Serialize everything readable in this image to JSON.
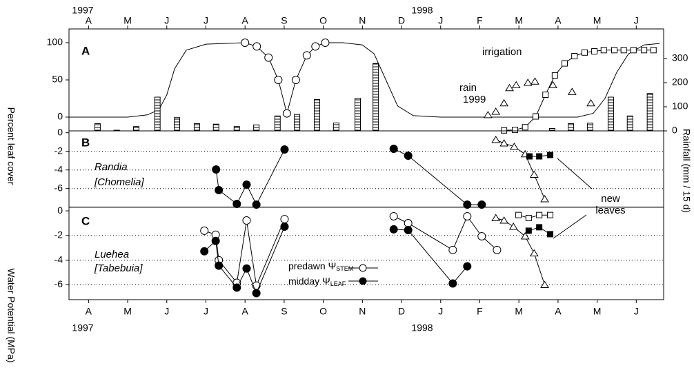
{
  "chart_data": [
    {
      "type": "line",
      "label": "A",
      "years": [
        "1997",
        "1998"
      ],
      "xlim": [
        -0.5,
        14.7
      ],
      "xticks": [
        {
          "value": 0,
          "label": "A"
        },
        {
          "value": 1,
          "label": "M"
        },
        {
          "value": 2,
          "label": "J"
        },
        {
          "value": 3,
          "label": "J"
        },
        {
          "value": 4,
          "label": "A"
        },
        {
          "value": 5,
          "label": "S"
        },
        {
          "value": 6,
          "label": "O"
        },
        {
          "value": 7,
          "label": "N"
        },
        {
          "value": 8,
          "label": "D"
        },
        {
          "value": 9,
          "label": "J"
        },
        {
          "value": 10,
          "label": "F"
        },
        {
          "value": 11,
          "label": "M"
        },
        {
          "value": 12,
          "label": "A"
        },
        {
          "value": 13,
          "label": "M"
        },
        {
          "value": 14,
          "label": "J"
        }
      ],
      "ylim": [
        -18.5,
        118.5
      ],
      "yticks": [
        0,
        50,
        100
      ],
      "y2lim": [
        0,
        423
      ],
      "y2ticks": [
        0,
        100,
        200,
        300
      ],
      "ylabel": "Percent leaf cover",
      "y2label": "Rainfall (mm / 15 d)",
      "annotations": [
        "irrigation",
        "rain",
        "1999"
      ],
      "series": [
        {
          "marker": "none",
          "line": true,
          "x": [
            -0.5,
            1.0,
            1.5,
            1.8,
            2.0,
            2.2,
            2.5,
            3.0,
            4.0,
            4.3,
            4.6,
            4.85,
            5.07,
            5.3,
            5.58,
            5.8,
            6.05,
            6.5,
            7.0,
            7.3,
            7.6,
            7.9,
            8.3,
            9.0,
            12.5,
            12.9,
            13.2,
            13.5,
            13.8,
            14.2,
            14.6
          ],
          "values": [
            0,
            0,
            3,
            10,
            30,
            65,
            90,
            98,
            100,
            95,
            80,
            50,
            5,
            50,
            83,
            95,
            100,
            100,
            97,
            85,
            50,
            15,
            2,
            0,
            0,
            5,
            25,
            60,
            85,
            97,
            99
          ]
        },
        {
          "marker": "circle",
          "fill": "white",
          "line": false,
          "x": [
            4.0,
            4.3,
            4.6,
            4.85,
            5.07,
            5.3,
            5.58,
            5.8,
            6.05
          ],
          "values": [
            100,
            95,
            80,
            50,
            5,
            50,
            83,
            95,
            100
          ]
        },
        {
          "marker": "bar",
          "axis": "y2",
          "x": [
            0.23,
            0.72,
            1.22,
            1.76,
            2.26,
            2.77,
            3.26,
            3.79,
            4.29,
            4.83,
            5.33,
            5.84,
            6.33,
            6.88,
            7.34,
            11.85,
            12.33,
            12.82,
            13.35,
            13.84,
            14.35
          ],
          "values": [
            30,
            3,
            18,
            140,
            55,
            30,
            28,
            18,
            25,
            62,
            68,
            130,
            33,
            135,
            280,
            10,
            30,
            32,
            140,
            62,
            155
          ]
        },
        {
          "marker": "square",
          "fill": "white",
          "line": true,
          "axis": "y2",
          "x": [
            10.62,
            10.9,
            11.16,
            11.43,
            11.68,
            11.92,
            12.17,
            12.42,
            12.68,
            12.93,
            13.17,
            13.44,
            13.68,
            13.93,
            14.2,
            14.44
          ],
          "values": [
            2,
            4,
            15,
            60,
            150,
            230,
            280,
            310,
            325,
            330,
            335,
            335,
            335,
            335,
            335,
            335
          ]
        },
        {
          "marker": "triangle",
          "fill": "white",
          "line": false,
          "axis": "y2",
          "x": [
            10.21,
            10.41,
            10.62,
            10.76,
            10.93,
            11.23,
            11.41,
            11.87,
            12.36,
            12.84
          ],
          "values": [
            66,
            80,
            115,
            178,
            190,
            200,
            205,
            190,
            162,
            115
          ]
        }
      ]
    },
    {
      "type": "line",
      "label": "B",
      "ylim": [
        -8,
        0.2
      ],
      "yticks": [
        0,
        -2,
        -4,
        -6
      ],
      "grid": true,
      "annotations": [
        "Randia",
        "[Chomelia]",
        "new",
        "leaves"
      ],
      "series": [
        {
          "marker": "circle",
          "fill": "black",
          "line": true,
          "x": [
            3.26,
            3.33,
            3.79,
            4.04,
            4.29,
            5.01,
            null,
            7.8,
            8.17,
            9.68,
            10.05
          ],
          "values": [
            -3.95,
            -6.17,
            -7.65,
            -5.58,
            -7.73,
            -1.8,
            null,
            -1.73,
            -2.47,
            -7.73,
            -7.73
          ]
        },
        {
          "marker": "triangle",
          "fill": "white",
          "line": true,
          "x": [
            10.41,
            10.62,
            10.88,
            11.16,
            11.39,
            11.66
          ],
          "values": [
            -0.76,
            -1.13,
            -1.5,
            -2.3,
            -4.5,
            -7.13
          ]
        },
        {
          "marker": "square",
          "fill": "black",
          "line": true,
          "x": [
            11.27,
            11.52,
            11.8
          ],
          "values": [
            -2.54,
            -2.54,
            -2.39
          ]
        }
      ]
    },
    {
      "type": "line",
      "label": "C",
      "ylim": [
        -7.2,
        0.3
      ],
      "yticks": [
        0,
        -2,
        -4,
        -6
      ],
      "grid": true,
      "ylabel": "Water Potential  (MPa)",
      "annotations": [
        "Luehea",
        "[Tabebuia]"
      ],
      "series": [
        {
          "name": "predawn",
          "symbol": "Ψ",
          "subscript": "STEM",
          "marker": "circle",
          "fill": "white",
          "line": true,
          "x": [
            2.96,
            3.25,
            3.33,
            3.79,
            4.04,
            4.29,
            5.01,
            null,
            7.8,
            8.17,
            9.31,
            9.68,
            10.05,
            10.44
          ],
          "values": [
            -1.61,
            -1.94,
            -4.0,
            -5.83,
            -0.78,
            -6.06,
            -0.67,
            null,
            -0.44,
            -1.0,
            -3.17,
            -0.44,
            -2.06,
            -3.17
          ]
        },
        {
          "name": "midday",
          "symbol": "Ψ",
          "subscript": "LEAF",
          "marker": "circle",
          "fill": "black",
          "line": true,
          "x": [
            2.96,
            3.25,
            3.33,
            3.79,
            4.04,
            4.29,
            5.01,
            null,
            7.8,
            8.17,
            9.31,
            9.68
          ],
          "values": [
            -3.28,
            -2.44,
            -4.44,
            -6.22,
            -4.67,
            -6.67,
            -1.28,
            null,
            -1.5,
            -1.56,
            -5.89,
            -4.5
          ]
        },
        {
          "marker": "triangle",
          "fill": "white",
          "line": true,
          "x": [
            10.41,
            10.62,
            10.86,
            11.16,
            11.39,
            11.66
          ],
          "values": [
            -0.58,
            -0.78,
            -1.28,
            -2.06,
            -3.44,
            -6.0
          ]
        },
        {
          "marker": "square",
          "fill": "white",
          "line": true,
          "x": [
            10.99,
            11.25,
            11.52,
            11.8
          ],
          "values": [
            -0.34,
            -0.58,
            -0.34,
            -0.34
          ]
        },
        {
          "marker": "square",
          "fill": "black",
          "line": true,
          "x": [
            11.25,
            11.52,
            11.8
          ],
          "values": [
            -1.61,
            -1.33,
            -1.89
          ]
        }
      ]
    }
  ]
}
